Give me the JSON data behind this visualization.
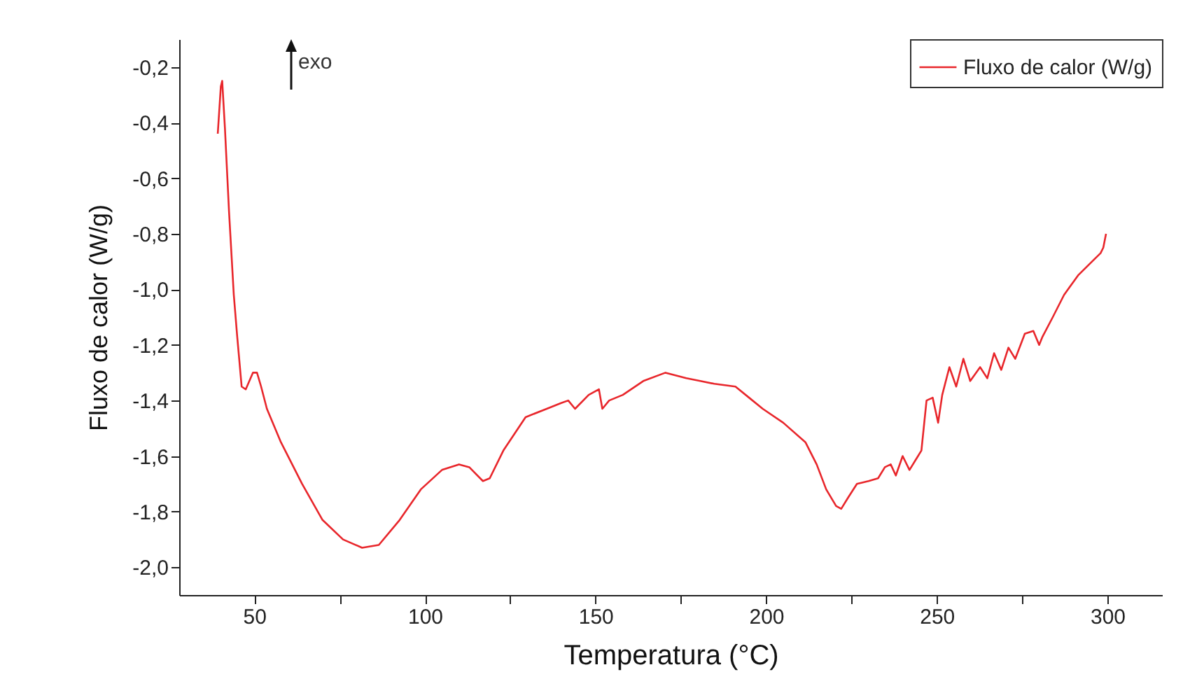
{
  "chart_data": {
    "type": "line",
    "xlabel": "Temperatura (°C)",
    "ylabel": "Fluxo de calor (W/g)",
    "annotations": [
      "exo"
    ],
    "legend": "top right",
    "grid": false,
    "line_style": "solid",
    "marker": "none",
    "xlim": [
      28,
      316
    ],
    "xticks": [
      50,
      {
        "value": 75,
        "label": null
      },
      100,
      {
        "value": 125,
        "label": null
      },
      150,
      {
        "value": 175,
        "label": null
      },
      200,
      {
        "value": 225,
        "label": null
      },
      250,
      {
        "value": 275,
        "label": null
      },
      300
    ],
    "ylim": [
      -2.1,
      -0.1
    ],
    "yticks": [
      {
        "value": -2.0,
        "label": "-2,0"
      },
      {
        "value": -1.8,
        "label": "-1,8"
      },
      {
        "value": -1.6,
        "label": "-1,6"
      },
      {
        "value": -1.4,
        "label": "-1,4"
      },
      {
        "value": -1.2,
        "label": "-1,2"
      },
      {
        "value": -1.0,
        "label": "-1,0"
      },
      {
        "value": -0.8,
        "label": "-0,8"
      },
      {
        "value": -0.6,
        "label": "-0,6"
      },
      {
        "value": -0.4,
        "label": "-0,4"
      },
      {
        "value": -0.2,
        "label": "-0,2"
      }
    ],
    "series": [
      {
        "name": "Fluxo de calor (W/g)",
        "color": "#e8262b",
        "x": [
          39.3,
          40.2,
          40.6,
          41.4,
          42.6,
          44,
          45,
          46.3,
          47.5,
          49.6,
          50.8,
          52,
          53.7,
          57.8,
          64,
          70,
          76,
          81.6,
          86.5,
          92.6,
          98.8,
          105,
          110,
          113,
          117,
          119,
          123,
          129.5,
          135.7,
          139.8,
          142,
          144,
          148,
          151,
          152,
          154,
          158,
          164,
          170.5,
          176.6,
          180.7,
          184.8,
          191,
          195,
          199,
          205,
          211.5,
          214.8,
          217.6,
          220.5,
          222,
          224,
          226.6,
          230,
          232.8,
          234.8,
          236.5,
          238,
          240,
          242,
          244,
          245.5,
          247,
          248.8,
          250.4,
          251.6,
          253.7,
          255.7,
          257.8,
          259.8,
          262.7,
          264.8,
          266.8,
          268.9,
          271,
          273,
          275.8,
          278.3,
          280,
          281,
          284,
          287.3,
          291.4,
          295.5,
          298,
          298.8,
          299.6
        ],
        "values": [
          -0.44,
          -0.27,
          -0.25,
          -0.42,
          -0.72,
          -1.02,
          -1.17,
          -1.35,
          -1.36,
          -1.3,
          -1.3,
          -1.35,
          -1.43,
          -1.55,
          -1.7,
          -1.83,
          -1.9,
          -1.93,
          -1.92,
          -1.83,
          -1.72,
          -1.65,
          -1.63,
          -1.64,
          -1.69,
          -1.68,
          -1.58,
          -1.46,
          -1.43,
          -1.41,
          -1.4,
          -1.43,
          -1.38,
          -1.36,
          -1.43,
          -1.4,
          -1.38,
          -1.33,
          -1.3,
          -1.32,
          -1.33,
          -1.34,
          -1.35,
          -1.39,
          -1.43,
          -1.48,
          -1.55,
          -1.63,
          -1.72,
          -1.78,
          -1.79,
          -1.75,
          -1.7,
          -1.69,
          -1.68,
          -1.64,
          -1.63,
          -1.67,
          -1.6,
          -1.65,
          -1.61,
          -1.58,
          -1.4,
          -1.39,
          -1.48,
          -1.38,
          -1.28,
          -1.35,
          -1.25,
          -1.33,
          -1.28,
          -1.32,
          -1.23,
          -1.29,
          -1.21,
          -1.25,
          -1.16,
          -1.15,
          -1.2,
          -1.17,
          -1.1,
          -1.02,
          -0.95,
          -0.9,
          -0.87,
          -0.85,
          -0.8
        ]
      }
    ]
  }
}
